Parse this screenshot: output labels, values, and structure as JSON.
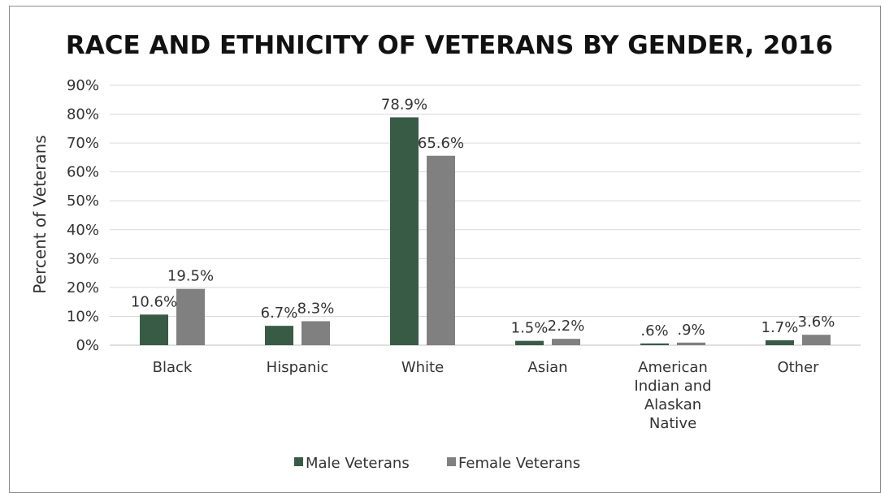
{
  "chart_data": {
    "type": "bar",
    "title": "RACE AND ETHNICITY OF VETERANS BY GENDER, 2016",
    "xlabel": "",
    "ylabel": "Percent of Veterans",
    "ylim": [
      0,
      90
    ],
    "yticks": [
      "0%",
      "10%",
      "20%",
      "30%",
      "40%",
      "50%",
      "60%",
      "70%",
      "80%",
      "90%"
    ],
    "grid": true,
    "legend": "bottom",
    "categories": [
      [
        "Black"
      ],
      [
        "Hispanic"
      ],
      [
        "White"
      ],
      [
        "Asian"
      ],
      [
        "American",
        "Indian and",
        "Alaskan",
        "Native"
      ],
      [
        "Other"
      ]
    ],
    "series": [
      {
        "name": "Male Veterans",
        "color": "#385b46",
        "values": [
          10.6,
          6.7,
          78.9,
          1.5,
          0.6,
          1.7
        ],
        "labels": [
          "10.6%",
          "6.7%",
          "78.9%",
          "1.5%",
          ".6%",
          "1.7%"
        ]
      },
      {
        "name": "Female Veterans",
        "color": "#808080",
        "values": [
          19.5,
          8.3,
          65.6,
          2.2,
          0.9,
          3.6
        ],
        "labels": [
          "19.5%",
          "8.3%",
          "65.6%",
          "2.2%",
          ".9%",
          "3.6%"
        ]
      }
    ]
  }
}
